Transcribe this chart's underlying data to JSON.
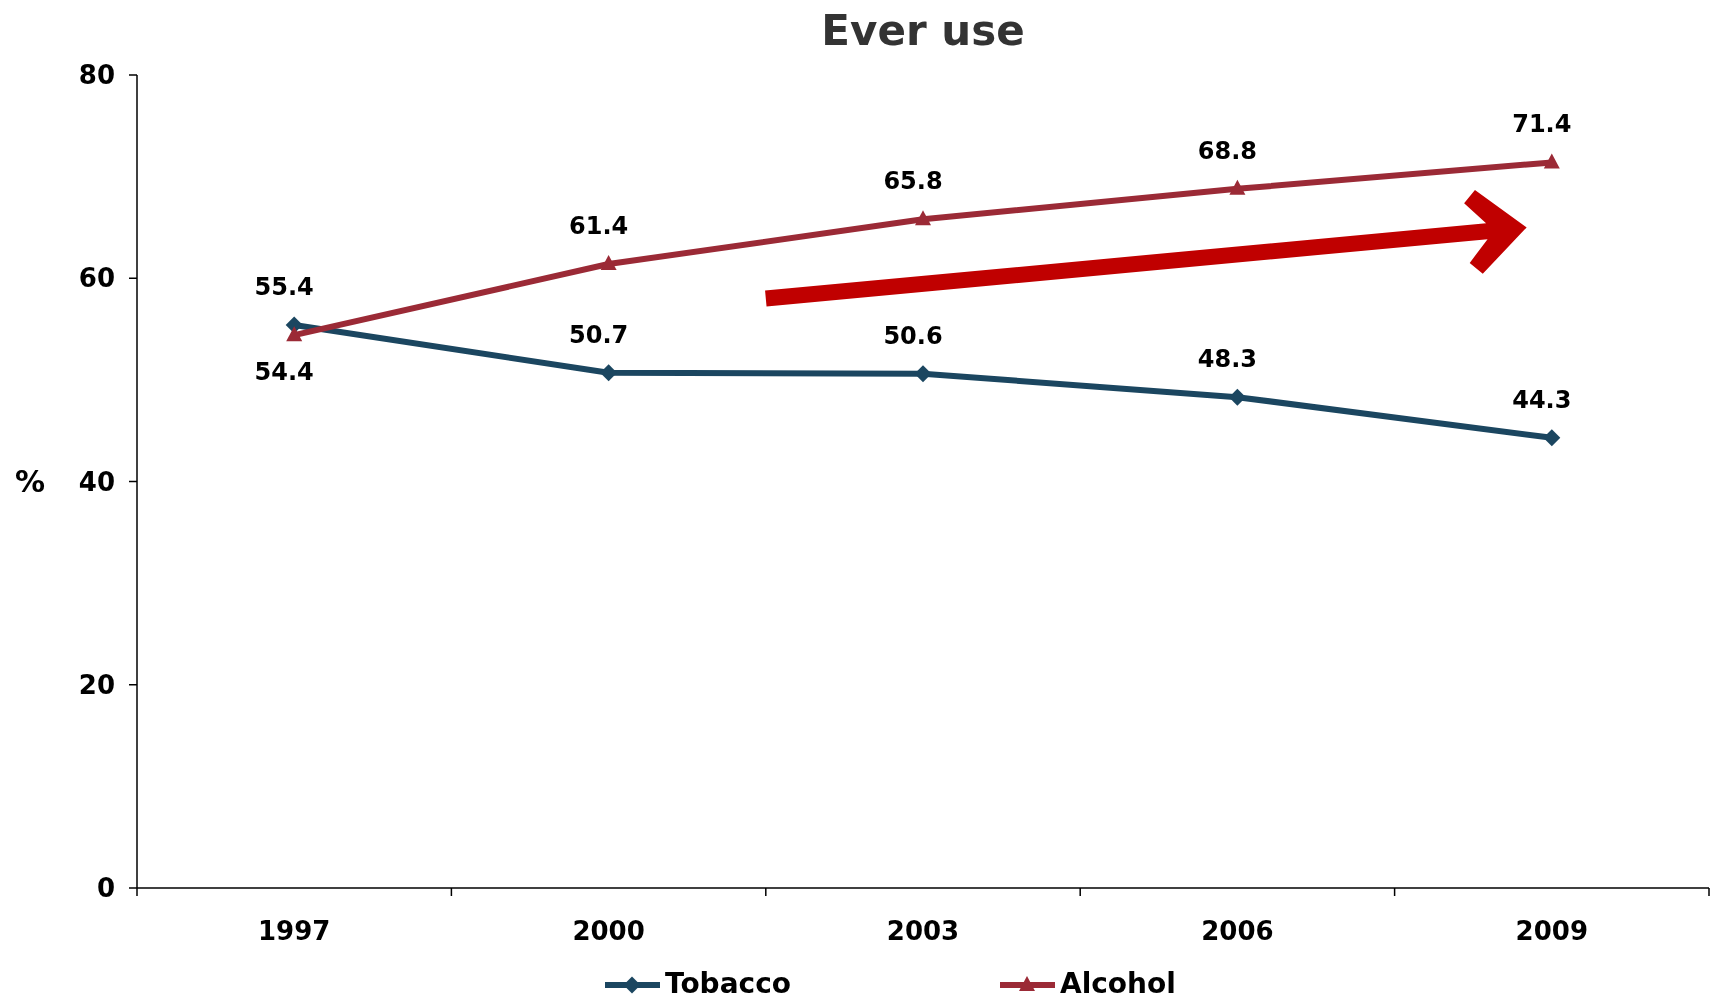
{
  "chart_data": {
    "type": "line",
    "title": "Ever use",
    "ylabel": "%",
    "categories": [
      "1997",
      "2000",
      "2003",
      "2006",
      "2009"
    ],
    "series": [
      {
        "name": "Tobacco",
        "color": "#1b4660",
        "marker": "diamond",
        "values": [
          55.4,
          50.7,
          50.6,
          48.3,
          44.3
        ]
      },
      {
        "name": "Alcohol",
        "color": "#9b2a36",
        "marker": "triangle",
        "values": [
          54.4,
          61.4,
          65.8,
          68.8,
          71.4
        ]
      }
    ],
    "ylim": [
      0,
      80
    ],
    "yticks": [
      0,
      20,
      40,
      60,
      80
    ],
    "grid": false,
    "legend": "bottom",
    "data_labels": true,
    "line_style": "solid"
  }
}
